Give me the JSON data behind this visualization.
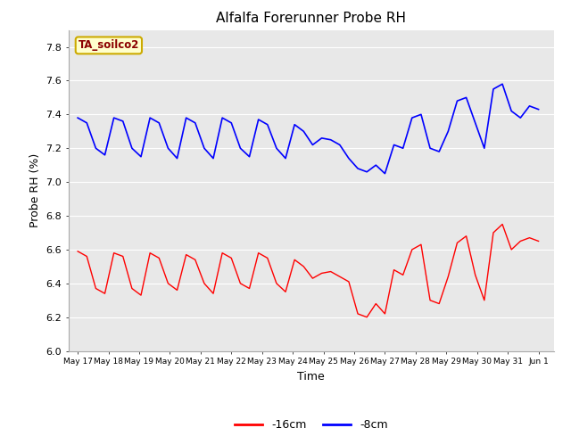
{
  "title": "Alfalfa Forerunner Probe RH",
  "xlabel": "Time",
  "ylabel": "Probe RH (%)",
  "ylim": [
    6.0,
    7.9
  ],
  "yticks": [
    6.0,
    6.2,
    6.4,
    6.6,
    6.8,
    7.0,
    7.2,
    7.4,
    7.6,
    7.8
  ],
  "background_color": "#ffffff",
  "plot_bg_color": "#e8e8e8",
  "grid_color": "#ffffff",
  "line_color_red": "#ff0000",
  "line_color_blue": "#0000ff",
  "legend_label_red": "-16cm",
  "legend_label_blue": "-8cm",
  "annotation_text": "TA_soilco2",
  "annotation_color": "#8b0000",
  "annotation_bg": "#ffffcc",
  "annotation_border": "#ccaa00",
  "xtick_labels": [
    "May 17",
    "May 18",
    "May 19",
    "May 20",
    "May 21",
    "May 22",
    "May 23",
    "May 24",
    "May 25",
    "May 26",
    "May 27",
    "May 28",
    "May 29",
    "May 30",
    "May 31",
    "Jun 1"
  ],
  "red_data": [
    6.59,
    6.56,
    6.37,
    6.34,
    6.58,
    6.56,
    6.37,
    6.33,
    6.58,
    6.55,
    6.4,
    6.36,
    6.57,
    6.54,
    6.4,
    6.34,
    6.58,
    6.55,
    6.4,
    6.37,
    6.58,
    6.55,
    6.4,
    6.35,
    6.54,
    6.5,
    6.43,
    6.46,
    6.47,
    6.44,
    6.41,
    6.22,
    6.2,
    6.28,
    6.22,
    6.48,
    6.45,
    6.6,
    6.63,
    6.3,
    6.28,
    6.44,
    6.64,
    6.68,
    6.45,
    6.3,
    6.7,
    6.75,
    6.6,
    6.65,
    6.67,
    6.65
  ],
  "blue_data": [
    7.38,
    7.35,
    7.2,
    7.16,
    7.38,
    7.36,
    7.2,
    7.15,
    7.38,
    7.35,
    7.2,
    7.14,
    7.38,
    7.35,
    7.2,
    7.14,
    7.38,
    7.35,
    7.2,
    7.15,
    7.37,
    7.34,
    7.2,
    7.14,
    7.34,
    7.3,
    7.22,
    7.26,
    7.25,
    7.22,
    7.14,
    7.08,
    7.06,
    7.1,
    7.05,
    7.22,
    7.2,
    7.38,
    7.4,
    7.2,
    7.18,
    7.3,
    7.48,
    7.5,
    7.35,
    7.2,
    7.55,
    7.58,
    7.42,
    7.38,
    7.45,
    7.43
  ]
}
